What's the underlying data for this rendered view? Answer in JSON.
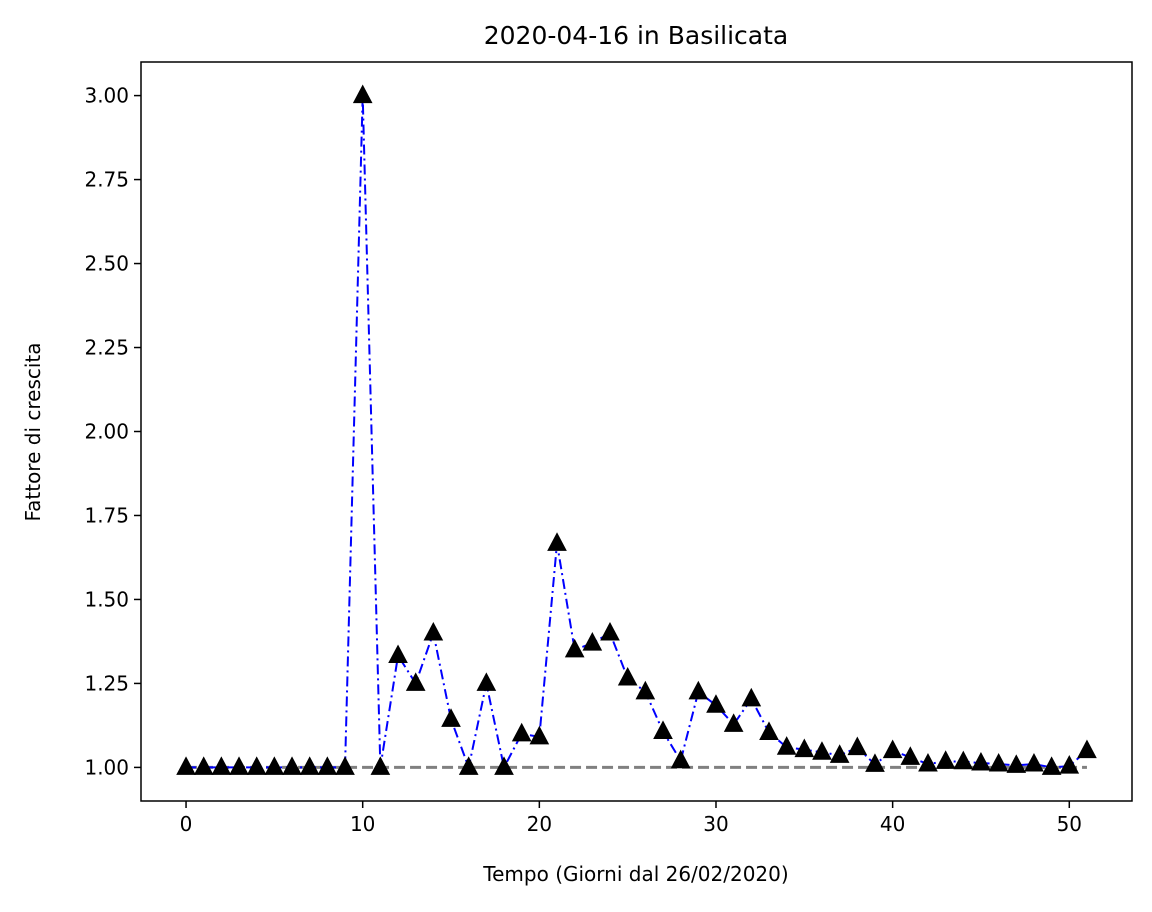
{
  "chart_data": {
    "type": "line",
    "title": "2020-04-16 in Basilicata",
    "xlabel": "Tempo (Giorni dal 26/02/2020)",
    "ylabel": "Fattore di crescita",
    "xlim": [
      -2.55,
      53.55
    ],
    "ylim": [
      0.9,
      3.1
    ],
    "xticks": [
      0,
      10,
      20,
      30,
      40,
      50
    ],
    "xtick_labels": [
      "0",
      "10",
      "20",
      "30",
      "40",
      "50"
    ],
    "yticks": [
      1.0,
      1.25,
      1.5,
      1.75,
      2.0,
      2.25,
      2.5,
      2.75,
      3.0
    ],
    "ytick_labels": [
      "1.00",
      "1.25",
      "1.50",
      "1.75",
      "2.00",
      "2.25",
      "2.50",
      "2.75",
      "3.00"
    ],
    "grid": false,
    "legend": "none",
    "series": [
      {
        "style": "dash-dot line with triangle markers",
        "line_color": "#0000ff",
        "marker_color": "#000000",
        "x": [
          0,
          1,
          2,
          3,
          4,
          5,
          6,
          7,
          8,
          9,
          10,
          11,
          12,
          13,
          14,
          15,
          16,
          17,
          18,
          19,
          20,
          21,
          22,
          23,
          24,
          25,
          26,
          27,
          28,
          29,
          30,
          31,
          32,
          33,
          34,
          35,
          36,
          37,
          38,
          39,
          40,
          41,
          42,
          43,
          44,
          45,
          46,
          47,
          48,
          49,
          50,
          51
        ],
        "values": [
          1.0,
          1.0,
          1.0,
          1.0,
          1.0,
          1.0,
          1.0,
          1.0,
          1.0,
          1.0,
          3.0,
          1.0,
          1.333,
          1.25,
          1.4,
          1.143,
          1.0,
          1.25,
          1.0,
          1.1,
          1.091,
          1.667,
          1.35,
          1.37,
          1.4,
          1.266,
          1.225,
          1.107,
          1.02,
          1.225,
          1.185,
          1.128,
          1.204,
          1.104,
          1.06,
          1.053,
          1.045,
          1.036,
          1.059,
          1.009,
          1.05,
          1.03,
          1.01,
          1.018,
          1.017,
          1.013,
          1.01,
          1.006,
          1.01,
          1.0,
          1.004,
          1.05
        ]
      },
      {
        "style": "dashed reference line",
        "line_color": "#808080",
        "x": [
          0,
          51
        ],
        "values": [
          1.0,
          1.0
        ]
      }
    ]
  }
}
